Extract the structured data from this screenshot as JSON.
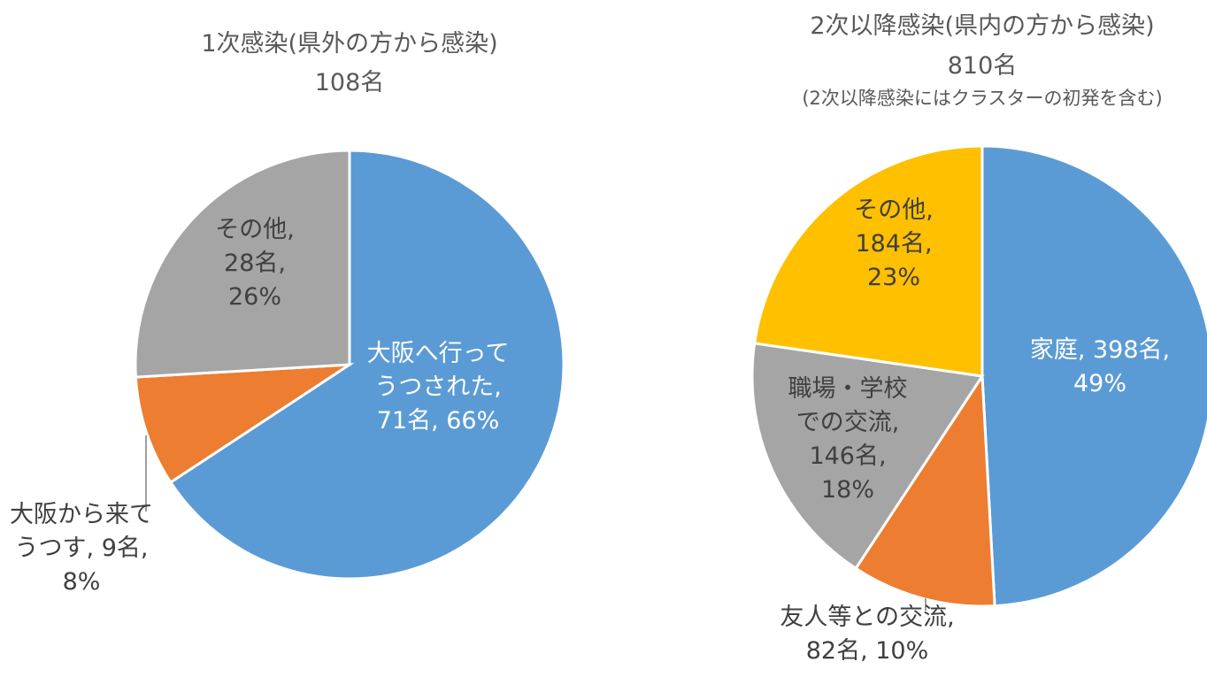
{
  "chart_data": [
    {
      "type": "pie",
      "title": "1次感染(県外の方から感染)",
      "subtitle": "108名",
      "note": "",
      "slices": [
        {
          "label": "大阪へ行ってうつされた",
          "label_lines": [
            "大阪へ行って",
            "うつされた,",
            "71名, 66%"
          ],
          "count": 71,
          "percent": 66,
          "color": "#5B9BD5"
        },
        {
          "label": "大阪から来てうつす",
          "label_lines": [
            "大阪から来て",
            "うつす, 9名,",
            "8%"
          ],
          "count": 9,
          "percent": 8,
          "color": "#ED7D31"
        },
        {
          "label": "その他",
          "label_lines": [
            "その他,",
            "28名,",
            "26%"
          ],
          "count": 28,
          "percent": 26,
          "color": "#A5A5A5"
        }
      ]
    },
    {
      "type": "pie",
      "title": "2次以降感染(県内の方から感染)",
      "subtitle": "810名",
      "note": "(2次以降感染にはクラスターの初発を含む)",
      "slices": [
        {
          "label": "家庭",
          "label_lines": [
            "家庭, 398名,",
            "49%"
          ],
          "count": 398,
          "percent": 49,
          "color": "#5B9BD5"
        },
        {
          "label": "友人等との交流",
          "label_lines": [
            "友人等との交流,",
            "82名, 10%"
          ],
          "count": 82,
          "percent": 10,
          "color": "#ED7D31"
        },
        {
          "label": "職場・学校での交流",
          "label_lines": [
            "職場・学校",
            "での交流,",
            "146名,",
            "18%"
          ],
          "count": 146,
          "percent": 18,
          "color": "#A5A5A5"
        },
        {
          "label": "その他",
          "label_lines": [
            "その他,",
            "184名,",
            "23%"
          ],
          "count": 184,
          "percent": 23,
          "color": "#FFC000"
        }
      ]
    }
  ]
}
